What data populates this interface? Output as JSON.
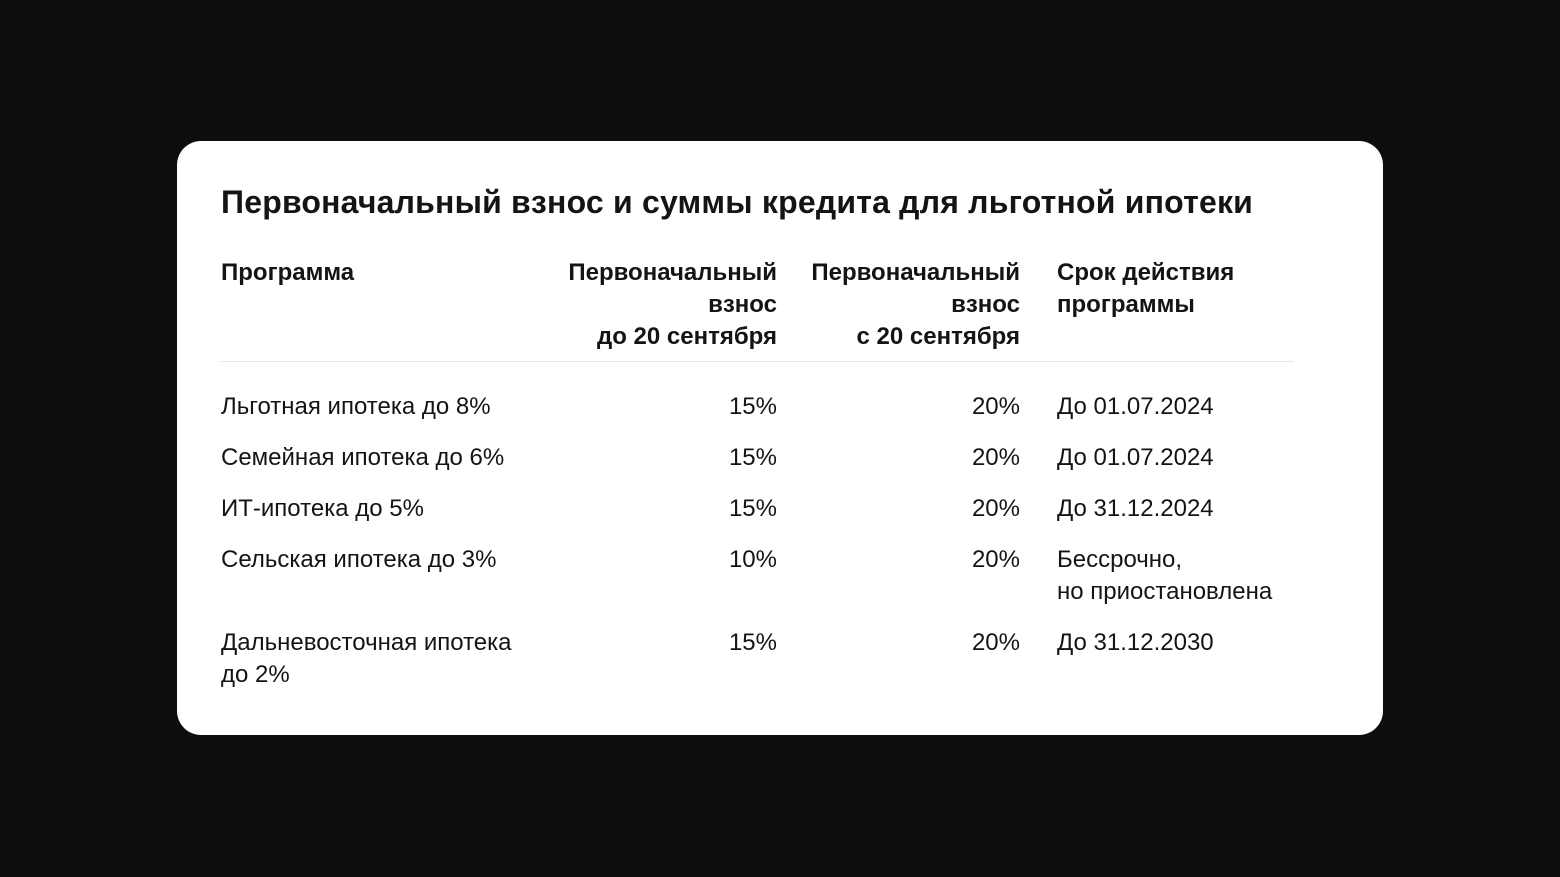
{
  "card": {
    "title": "Первоначальный взнос и суммы кредита для льготной ипотеки"
  },
  "chart_data": {
    "type": "table",
    "title": "Первоначальный взнос и суммы кредита для льготной ипотеки",
    "columns": [
      "Программа",
      "Первоначальный взнос до 20 сентября",
      "Первоначальный взнос с 20 сентября",
      "Срок действия программы"
    ],
    "headers_display": [
      "Программа",
      "Первоначальный\nвзнос\nдо 20 сентября",
      "Первоначальный\nвзнос\nс 20 сентября",
      "Срок действия\nпрограммы"
    ],
    "rows": [
      [
        "Льготная ипотека до 8%",
        "15%",
        "20%",
        "До 01.07.2024"
      ],
      [
        "Семейная ипотека до 6%",
        "15%",
        "20%",
        "До 01.07.2024"
      ],
      [
        "ИТ-ипотека до 5%",
        "15%",
        "20%",
        "До 31.12.2024"
      ],
      [
        "Сельская ипотека до 3%",
        "10%",
        "20%",
        "Бессрочно,\nно приостановлена"
      ],
      [
        "Дальневосточная ипотека\nдо 2%",
        "15%",
        "20%",
        "До 31.12.2030"
      ]
    ]
  },
  "colors": {
    "background": "#0d0d0d",
    "card": "#ffffff",
    "text": "#141414",
    "divider": "#e4e4e4"
  }
}
